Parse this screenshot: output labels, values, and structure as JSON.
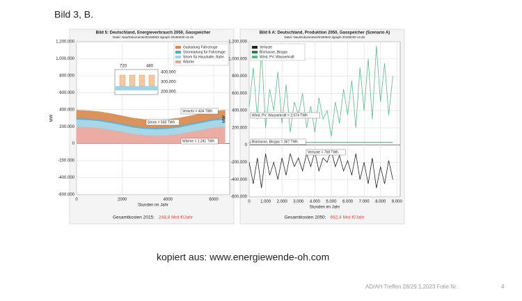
{
  "heading": "Bild 3,   B.",
  "source": "kopiert aus: www.energiewende-oh.com",
  "footer": "AD/AH Treffen 28/29.1.2023  Folie Nr.",
  "page_number": "4",
  "chart_data": [
    {
      "type": "area",
      "title": "Bild 5: Deutschland, Energieverbrauch 2050, Gasspeicher",
      "subtitle": "Datei: Nau/Dokumente/20190922 dgraph 20180030 v3.xls",
      "ylabel": "MW",
      "xlabel": "Stunden im Jahr",
      "x": [
        0,
        500,
        1000,
        1500,
        2000,
        2500,
        3000,
        3500,
        4000,
        4500,
        5000,
        5500,
        6000,
        6500
      ],
      "series": [
        {
          "name": "Wärme",
          "color": "#e8a49a",
          "values": [
            200000,
            195000,
            185000,
            165000,
            140000,
            115000,
            100000,
            95000,
            100000,
            115000,
            140000,
            165000,
            190000,
            200000
          ]
        },
        {
          "name": "Strom für Haushalte, Bahn",
          "color": "#9fd3e6",
          "values": [
            85000,
            84000,
            82000,
            80000,
            78000,
            76000,
            75000,
            75000,
            76000,
            78000,
            80000,
            82000,
            84000,
            85000
          ]
        },
        {
          "name": "Stromladung für Fahrzeuge",
          "color": "#5aa9c9",
          "values": [
            20000,
            20000,
            20000,
            20000,
            20000,
            20000,
            20000,
            20000,
            20000,
            20000,
            20000,
            20000,
            20000,
            20000
          ]
        },
        {
          "name": "Gasladung Fahrzeuge",
          "color": "#d9884a",
          "values": [
            90000,
            90000,
            90000,
            90000,
            90000,
            90000,
            90000,
            90000,
            90000,
            90000,
            90000,
            90000,
            90000,
            90000
          ]
        }
      ],
      "xlim": [
        0,
        6700
      ],
      "xticks": [
        0,
        2000,
        4000,
        6000
      ],
      "ylim": [
        -600000,
        1200000
      ],
      "yticks": [
        {
          "value": 1200000,
          "label": "1.200.000"
        },
        {
          "value": 1000000,
          "label": "1.000.000"
        },
        {
          "value": 800000,
          "label": "800.000"
        },
        {
          "value": 600000,
          "label": "600.000"
        },
        {
          "value": 400000,
          "label": "400.000"
        },
        {
          "value": 200000,
          "label": "200.000"
        },
        0,
        {
          "value": -200000,
          "label": "-200.000"
        },
        {
          "value": -400000,
          "label": "-400.000"
        },
        {
          "value": -600000,
          "label": "-600.000"
        }
      ],
      "grid": true,
      "legend": "upper right",
      "annotations": [
        "Verkehr = 404 TWh",
        "Strom = 560 TWh",
        "Wärme = 1.241 TWh"
      ],
      "inset_labels": [
        "720",
        "480",
        "400.000",
        "300.000",
        "200.000"
      ],
      "cost_label": "Gesamtkosten 2015:",
      "cost_value": "248,8 Mrd €/Jahr",
      "cost_color": "#e0443a"
    },
    {
      "type": "line",
      "title": "Bild 6 A: Deutschland, Produktion 2050, Gasspeicher (Szenario A)",
      "subtitle": "Datei: Nau/Dokumente/20190922 dgraph 20180030 v3.xls",
      "ylabel": "MW",
      "xlabel": "Stunden im Jahr",
      "x": [
        0,
        250,
        500,
        750,
        1000,
        1250,
        1500,
        1750,
        2000,
        2250,
        2500,
        2750,
        3000,
        3250,
        3500,
        3750,
        4000,
        4250,
        4500,
        4750,
        5000,
        5250,
        5500,
        5750,
        6000,
        6250,
        6500,
        6750,
        7000,
        7250,
        7500,
        7750,
        8000,
        8250,
        8500,
        8750
      ],
      "series": [
        {
          "name": "Wind, PV, Wasserkraft",
          "color": "#5cb88a",
          "values": [
            450000,
            900000,
            300000,
            1100000,
            200000,
            650000,
            400000,
            850000,
            250000,
            700000,
            150000,
            500000,
            350000,
            600000,
            200000,
            450000,
            150000,
            550000,
            300000,
            400000,
            100000,
            500000,
            250000,
            650000,
            350000,
            750000,
            200000,
            900000,
            400000,
            1000000,
            300000,
            1150000,
            500000,
            950000,
            350000,
            800000
          ]
        },
        {
          "name": "Biomasse, Biogas",
          "color": "#1f8a4c",
          "values": [
            30000,
            30000,
            30000,
            30000,
            30000,
            30000,
            30000,
            30000,
            30000,
            30000,
            30000,
            30000,
            30000,
            30000,
            30000,
            30000,
            30000,
            30000,
            30000,
            30000,
            30000,
            30000,
            30000,
            30000,
            30000,
            30000,
            30000,
            30000,
            30000,
            30000,
            30000,
            30000,
            30000,
            30000,
            30000,
            30000
          ]
        },
        {
          "name": "Verluste",
          "color": "#222222",
          "values": [
            -200000,
            -450000,
            -150000,
            -500000,
            -100000,
            -350000,
            -200000,
            -400000,
            -150000,
            -350000,
            -100000,
            -250000,
            -150000,
            -300000,
            -100000,
            -250000,
            -80000,
            -300000,
            -150000,
            -200000,
            -60000,
            -250000,
            -120000,
            -300000,
            -180000,
            -350000,
            -100000,
            -400000,
            -200000,
            -450000,
            -150000,
            -500000,
            -250000,
            -450000,
            -180000,
            -400000
          ]
        }
      ],
      "xlim": [
        0,
        9200
      ],
      "xticks": [
        0,
        {
          "value": 1000,
          "label": "1.000"
        },
        {
          "value": 2000,
          "label": "2.000"
        },
        {
          "value": 3000,
          "label": "3.000"
        },
        {
          "value": 4000,
          "label": "4.000"
        },
        {
          "value": 5000,
          "label": "5.000"
        },
        {
          "value": 6000,
          "label": "6.000"
        },
        {
          "value": 7000,
          "label": "7.000"
        },
        {
          "value": 8000,
          "label": "8.000"
        },
        {
          "value": 9000,
          "label": "9.000"
        }
      ],
      "ylim": [
        -600000,
        1200000
      ],
      "yticks": [
        {
          "value": 1200000,
          "label": "1.200.000"
        },
        {
          "value": 1000000,
          "label": "1.000.000"
        },
        {
          "value": 800000,
          "label": "800.000"
        },
        {
          "value": 600000,
          "label": "600.000"
        },
        {
          "value": 400000,
          "label": "400.000"
        },
        {
          "value": 200000,
          "label": "200.000"
        },
        0,
        {
          "value": -200000,
          "label": "-200.000"
        },
        {
          "value": -400000,
          "label": "-400.000"
        },
        {
          "value": -600000,
          "label": "-600.000"
        }
      ],
      "grid": true,
      "legend": "upper left",
      "annotations": [
        "Wind, PV, Wasserkraft = 2.074 TWh",
        "Biomasse, Biogas = 367 TWh",
        "Verluste = 768 TWh"
      ],
      "cost_label": "Gesamtkosten 2050:",
      "cost_value": "662,4 Mrd €/Jahr",
      "cost_color": "#e0443a"
    }
  ]
}
